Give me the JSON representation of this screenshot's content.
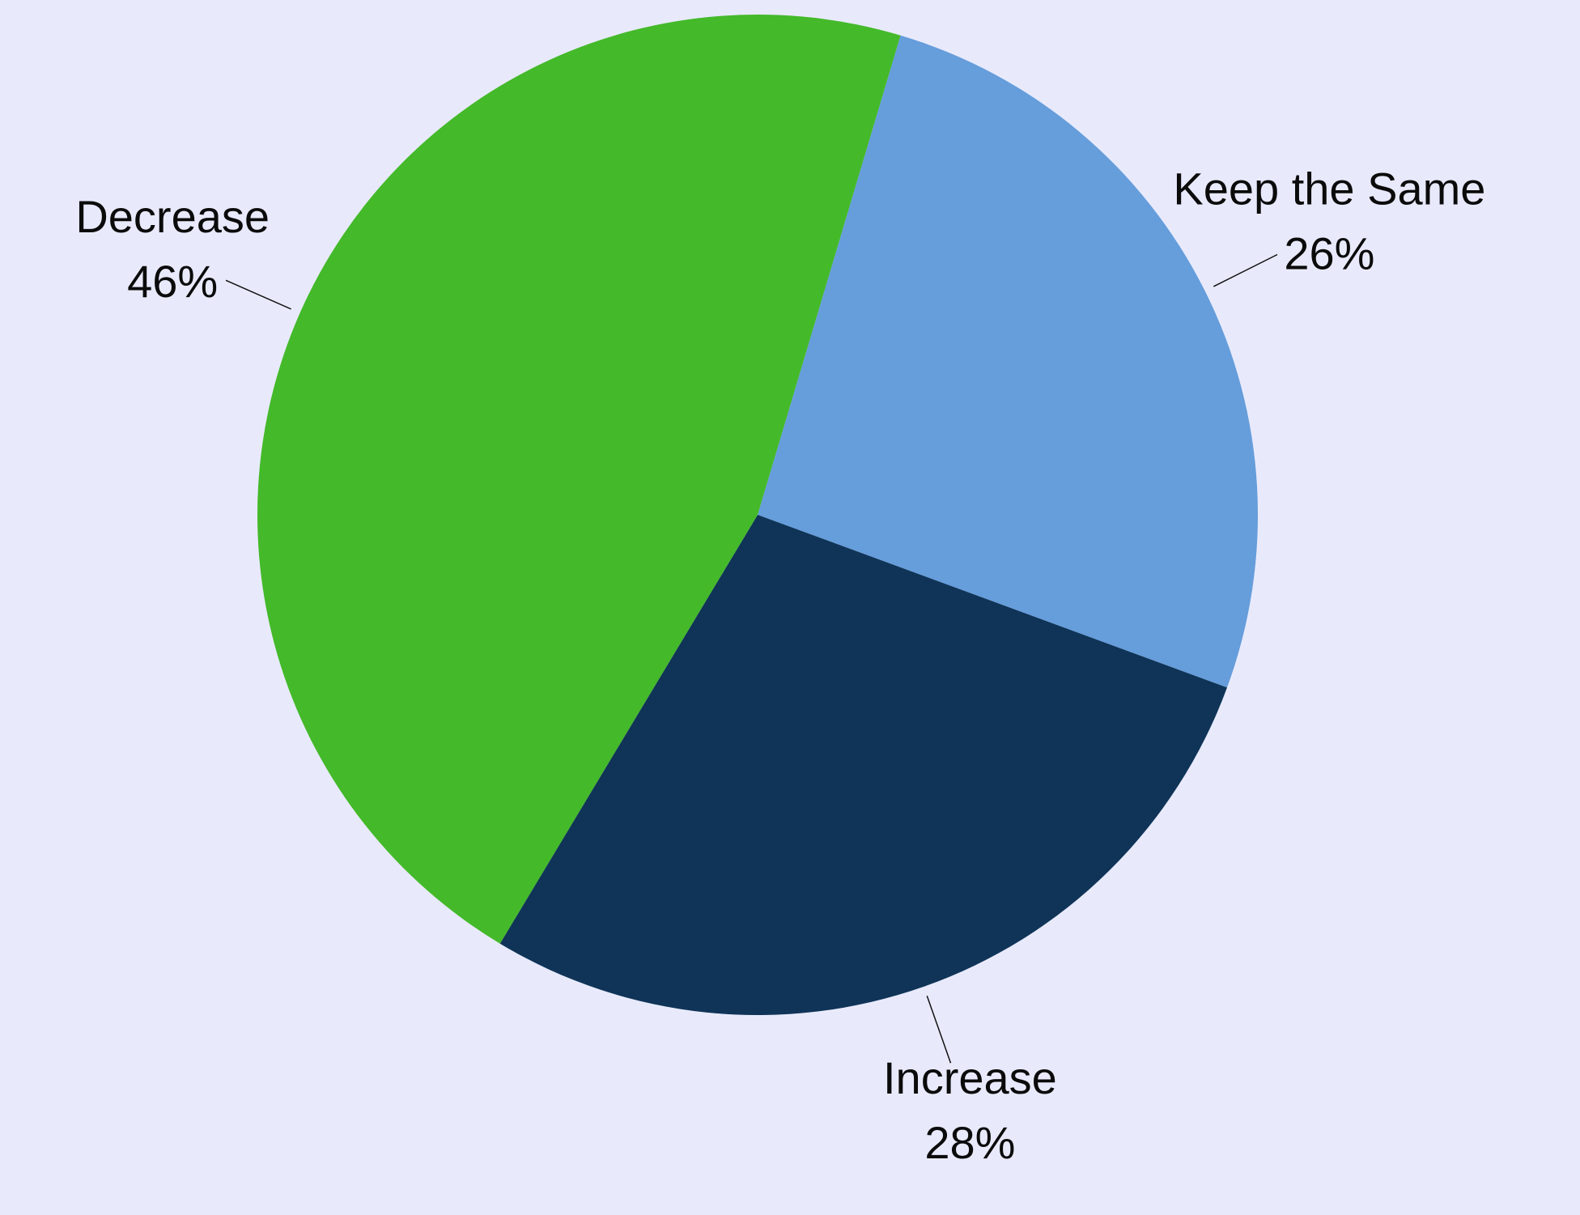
{
  "background_color": "#e8eafc",
  "chart_data": {
    "type": "pie",
    "title": "",
    "slices": [
      {
        "label": "Keep the Same",
        "value": 26,
        "value_label": "26%",
        "color": "#669ddb"
      },
      {
        "label": "Increase",
        "value": 28,
        "value_label": "28%",
        "color": "#0f3457"
      },
      {
        "label": "Decrease",
        "value": 46,
        "value_label": "46%",
        "color": "#44b92a"
      }
    ],
    "legend": "none",
    "labels": "outside"
  }
}
